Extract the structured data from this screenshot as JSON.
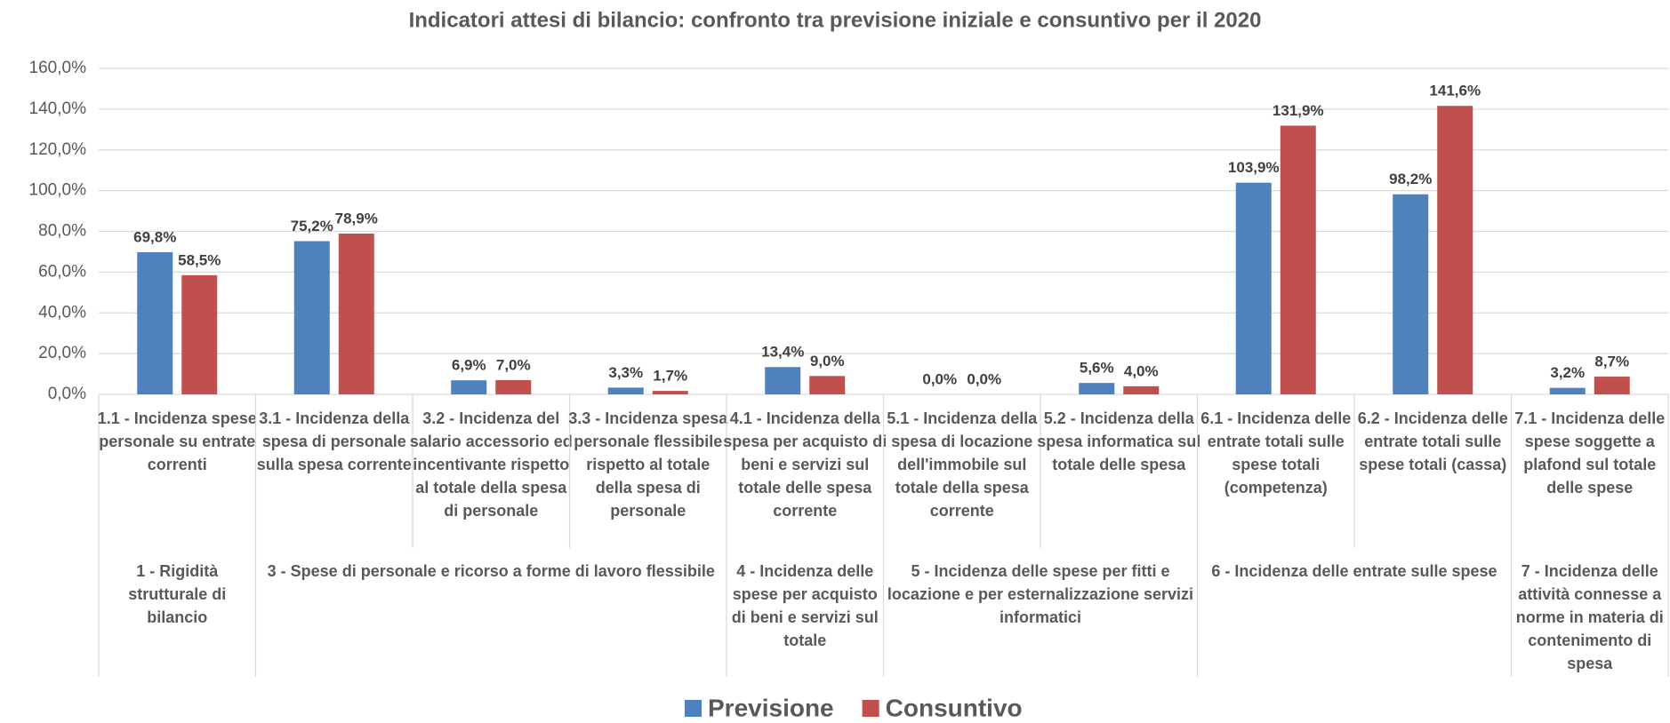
{
  "chart_data": {
    "type": "bar",
    "title": "Indicatori attesi di bilancio: confronto tra previsione iniziale e consuntivo per il 2020",
    "groups": [
      {
        "label": "1 - Rigidità strutturale di bilancio",
        "categories": [
          "1.1 - Incidenza spese personale su entrate correnti"
        ]
      },
      {
        "label": "3 - Spese di personale e ricorso a forme di lavoro flessibile",
        "categories": [
          "3.1 - Incidenza della spesa di personale sulla spesa corrente",
          "3.2 - Incidenza del salario accessorio ed incentivante rispetto al totale della spesa di personale",
          "3.3 - Incidenza spesa personale flessibile rispetto al totale della spesa di personale"
        ]
      },
      {
        "label": "4 - Incidenza delle spese per acquisto di beni e servizi sul totale",
        "categories": [
          "4.1 - Incidenza della spesa per acquisto di beni e servizi sul totale delle spesa corrente"
        ]
      },
      {
        "label": "5 - Incidenza delle spese per fitti e locazione e per esternalizzazione servizi informatici",
        "categories": [
          "5.1 - Incidenza della spesa di locazione dell'immobile sul totale della spesa corrente",
          "5.2 - Incidenza della spesa informatica sul totale delle spesa"
        ]
      },
      {
        "label": "6 - Incidenza delle entrate sulle spese",
        "categories": [
          "6.1 - Incidenza delle entrate totali sulle spese totali (competenza)",
          "6.2 - Incidenza delle entrate totali sulle spese totali (cassa)"
        ]
      },
      {
        "label": "7 - Incidenza delle attività connesse a norme in materia di contenimento di spesa",
        "categories": [
          "7.1 - Incidenza delle spese soggette a plafond sul totale delle spese"
        ]
      }
    ],
    "series": [
      {
        "name": "Previsione",
        "color": "#4f81bd",
        "values": [
          69.8,
          75.2,
          6.9,
          3.3,
          13.4,
          0.0,
          5.6,
          103.9,
          98.2,
          3.2
        ],
        "value_labels": [
          "69,8%",
          "75,2%",
          "6,9%",
          "3,3%",
          "13,4%",
          "0,0%",
          "5,6%",
          "103,9%",
          "98,2%",
          "3,2%"
        ]
      },
      {
        "name": "Consuntivo",
        "color": "#c0504d",
        "values": [
          58.5,
          78.9,
          7.0,
          1.7,
          9.0,
          0.0,
          4.0,
          131.9,
          141.6,
          8.7
        ],
        "value_labels": [
          "58,5%",
          "78,9%",
          "7,0%",
          "1,7%",
          "9,0%",
          "0,0%",
          "4,0%",
          "131,9%",
          "141,6%",
          "8,7%"
        ]
      }
    ],
    "ylim": [
      0,
      160
    ],
    "yticks": [
      {
        "value": 0,
        "label": "0,0%"
      },
      {
        "value": 20,
        "label": "20,0%"
      },
      {
        "value": 40,
        "label": "40,0%"
      },
      {
        "value": 60,
        "label": "60,0%"
      },
      {
        "value": 80,
        "label": "80,0%"
      },
      {
        "value": 100,
        "label": "100,0%"
      },
      {
        "value": 120,
        "label": "120,0%"
      },
      {
        "value": 140,
        "label": "140,0%"
      },
      {
        "value": 160,
        "label": "160,0%"
      }
    ],
    "grid": true,
    "legend": "bottom"
  }
}
